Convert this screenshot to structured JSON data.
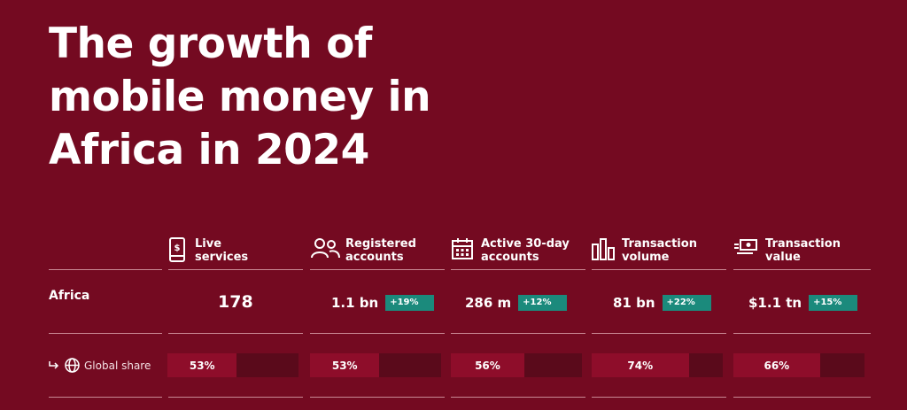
{
  "title_lines": [
    "The growth of",
    "mobile money in",
    "Africa in 2024"
  ],
  "columns": [
    {
      "icon": "phone-dollar-icon",
      "label_1": "Live",
      "label_2": "services"
    },
    {
      "icon": "users-icon",
      "label_1": "Registered",
      "label_2": "accounts"
    },
    {
      "icon": "calendar-icon",
      "label_1": "Active 30-day",
      "label_2": "accounts"
    },
    {
      "icon": "bar-chart-icon",
      "label_1": "Transaction",
      "label_2": "volume"
    },
    {
      "icon": "money-transfer-icon",
      "label_1": "Transaction",
      "label_2": "value"
    }
  ],
  "region": "Africa",
  "values": [
    {
      "value": "178",
      "growth": ""
    },
    {
      "value": "1.1 bn",
      "growth": "+19%"
    },
    {
      "value": "286 m",
      "growth": "+12%"
    },
    {
      "value": "81 bn",
      "growth": "+22%"
    },
    {
      "value": "$1.1 tn",
      "growth": "+15%"
    }
  ],
  "share_label": "Global share",
  "shares": [
    {
      "text": "53%",
      "fraction": 0.53
    },
    {
      "text": "53%",
      "fraction": 0.53
    },
    {
      "text": "56%",
      "fraction": 0.56
    },
    {
      "text": "74%",
      "fraction": 0.74
    },
    {
      "text": "66%",
      "fraction": 0.66
    }
  ],
  "colors": {
    "background": "#740a21",
    "badge": "#1b8a7c",
    "bar_fill": "#8e0d2a",
    "bar_track": "#5a0a1b"
  }
}
